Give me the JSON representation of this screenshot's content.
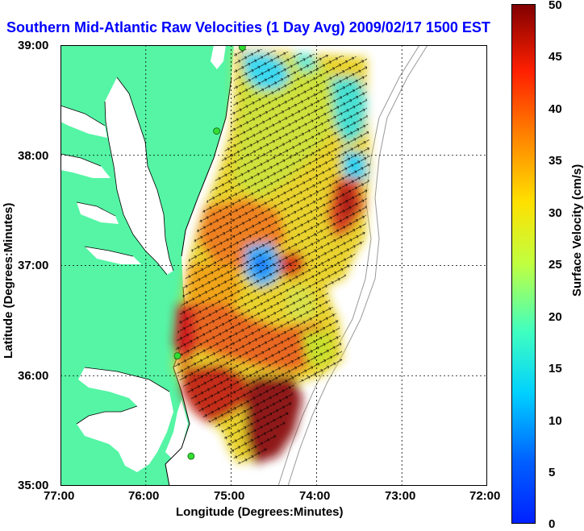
{
  "title": "Southern Mid-Atlantic Raw Velocities (1 Day Avg) 2009/02/17 1500 EST",
  "map": {
    "xlabel": "Longitude (Degrees:Minutes)",
    "ylabel": "Latitude (Degrees:Minutes)",
    "lon_ticks": [
      "77:00",
      "76:00",
      "75:00",
      "74:00",
      "73:00",
      "72:00"
    ],
    "lat_ticks": [
      "39:00",
      "38:00",
      "37:00",
      "36:00",
      "35:00"
    ],
    "lon_range": [
      -77,
      -72
    ],
    "lat_range": [
      35,
      39
    ],
    "grid": true,
    "land_color": "#55f5a5",
    "coast_color": "#000000",
    "bathymetry_color": "#999999",
    "station_color": "#33dd33"
  },
  "colorbar": {
    "label": "Surface Velocity (cm/s)",
    "ticks": [
      "50",
      "45",
      "40",
      "35",
      "30",
      "25",
      "20",
      "15",
      "10",
      "5",
      "0"
    ],
    "range": [
      0,
      50
    ],
    "colormap": "jet"
  },
  "stations": [
    {
      "lon": -74.87,
      "lat": 38.98
    },
    {
      "lon": -75.17,
      "lat": 38.22
    },
    {
      "lon": -75.63,
      "lat": 36.18
    },
    {
      "lon": -75.47,
      "lat": 35.27
    }
  ]
}
